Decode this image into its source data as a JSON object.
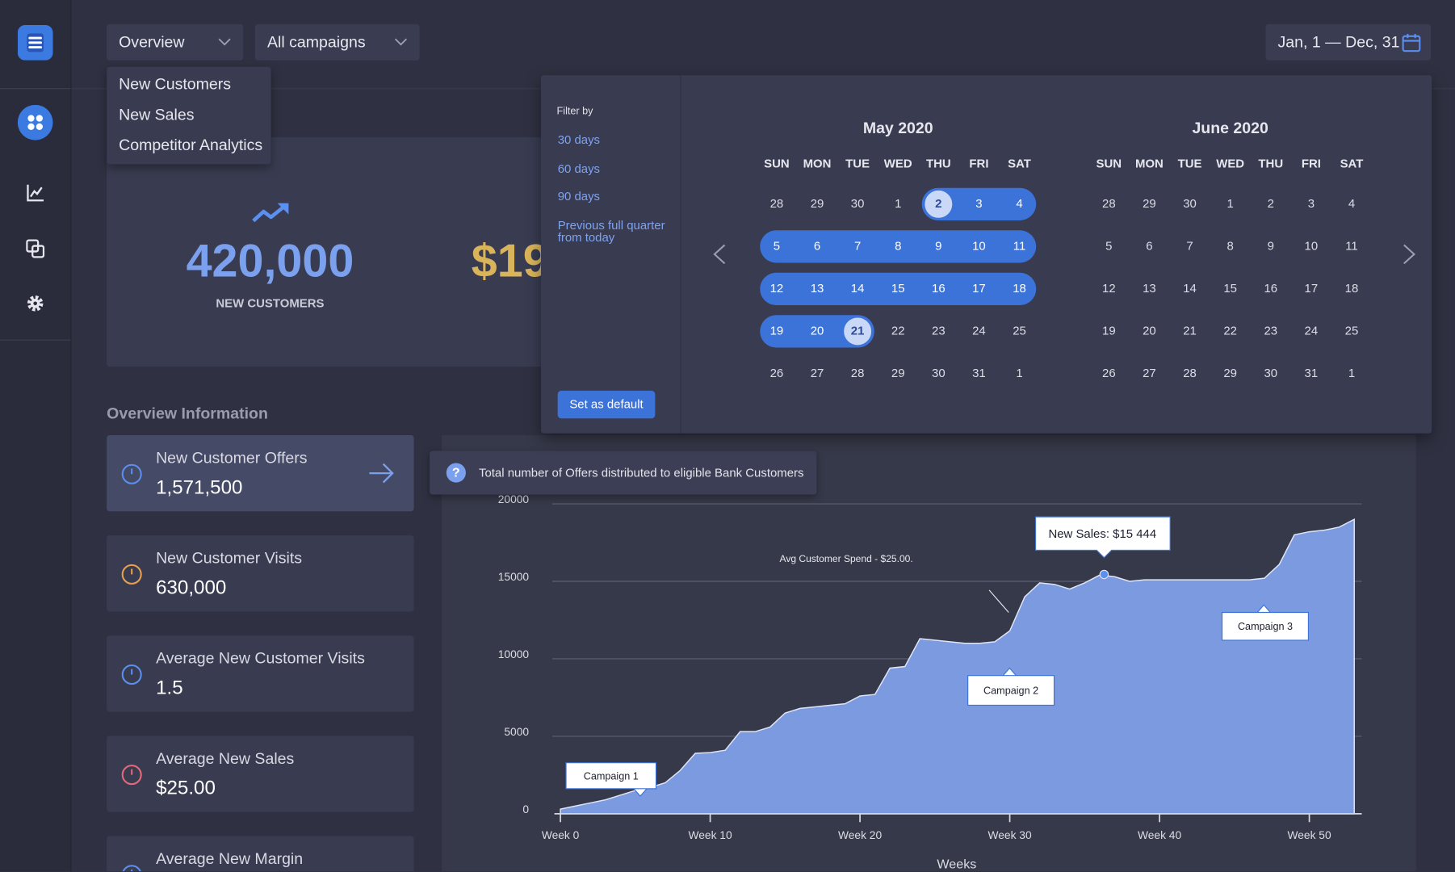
{
  "toolbar": {
    "view": "Overview",
    "campaign": "All campaigns",
    "date_range": "Jan, 1 — Dec, 31"
  },
  "view_menu": [
    "New Customers",
    "New Sales",
    "Competitor Analytics"
  ],
  "summary": {
    "new_customers": "420,000",
    "new_customers_label": "NEW CUSTOMERS",
    "second_value": "$19"
  },
  "overview": {
    "title": "Overview Information",
    "cards": [
      {
        "title": "New Customer Offers",
        "value": "1,571,500"
      },
      {
        "title": "New Customer Visits",
        "value": "630,000"
      },
      {
        "title": "Average New Customer Visits",
        "value": "1.5"
      },
      {
        "title": "Average New Sales",
        "value": "$25.00"
      },
      {
        "title": "Average New Margin"
      }
    ]
  },
  "tooltip": {
    "icon": "?",
    "text": "Total number of Offers distributed to eligible Bank Customers"
  },
  "date_picker": {
    "filter_title": "Filter by",
    "filters": [
      "30 days",
      "60 days",
      "90 days",
      "Previous full quarter from today"
    ],
    "button": "Set as default",
    "weekdays": [
      "SUN",
      "MON",
      "TUE",
      "WED",
      "THU",
      "FRI",
      "SAT"
    ],
    "months": [
      {
        "title": "May 2020",
        "weeks": [
          [
            28,
            29,
            30,
            1,
            2,
            3,
            4
          ],
          [
            5,
            6,
            7,
            8,
            9,
            10,
            11
          ],
          [
            12,
            13,
            14,
            15,
            16,
            17,
            18
          ],
          [
            19,
            20,
            21,
            22,
            23,
            24,
            25
          ],
          [
            26,
            27,
            28,
            29,
            30,
            31,
            1
          ]
        ]
      },
      {
        "title": "June 2020",
        "weeks": [
          [
            28,
            29,
            30,
            1,
            2,
            3,
            4
          ],
          [
            5,
            6,
            7,
            8,
            9,
            10,
            11
          ],
          [
            12,
            13,
            14,
            15,
            16,
            17,
            18
          ],
          [
            19,
            20,
            21,
            22,
            23,
            24,
            25
          ],
          [
            26,
            27,
            28,
            29,
            30,
            31,
            1
          ]
        ]
      }
    ]
  },
  "chart_data": {
    "type": "area",
    "x_label": "Weeks",
    "color": "#7b9ae0",
    "grid": true,
    "x": [
      0,
      1,
      2,
      3,
      4,
      5,
      6,
      7,
      8,
      9,
      10,
      11,
      12,
      13,
      14,
      15,
      16,
      17,
      18,
      19,
      20,
      21,
      22,
      23,
      24,
      25,
      26,
      27,
      28,
      29,
      30,
      31,
      32,
      33,
      34,
      35,
      36,
      37,
      38,
      39,
      40,
      41,
      42,
      43,
      44,
      45,
      46,
      47,
      48,
      49,
      50,
      51,
      52,
      53
    ],
    "values": [
      300,
      500,
      700,
      900,
      1200,
      1500,
      1700,
      2000,
      2800,
      3900,
      3950,
      4100,
      5300,
      5300,
      5600,
      6500,
      6800,
      6900,
      7000,
      7100,
      7600,
      7700,
      9400,
      9500,
      11300,
      11200,
      11100,
      11000,
      11000,
      11100,
      11800,
      14000,
      14900,
      14800,
      14500,
      14900,
      15400,
      15300,
      15000,
      15100,
      15100,
      15100,
      15100,
      15100,
      15100,
      15100,
      15100,
      15200,
      16100,
      18000,
      18200,
      18300,
      18500,
      19000
    ],
    "xlim": [
      -0.4,
      53.5
    ],
    "ylim": [
      0,
      20000
    ],
    "yticks": [
      0,
      5000,
      10000,
      15000,
      20000
    ],
    "xticks": [
      {
        "value": 0,
        "label": "Week 0"
      },
      {
        "value": 10,
        "label": "Week 10"
      },
      {
        "value": 20,
        "label": "Week 20"
      },
      {
        "value": 30,
        "label": "Week 30"
      },
      {
        "value": 40,
        "label": "Week 40"
      },
      {
        "value": 50,
        "label": "Week 50"
      }
    ],
    "annotations": [
      "Avg Customer Spend - $25.00.",
      "Campaign 1",
      "Campaign 2",
      "Campaign 3"
    ],
    "highlight": {
      "label": "New Sales: $15 444",
      "x": 36.3,
      "value": 15444
    }
  }
}
